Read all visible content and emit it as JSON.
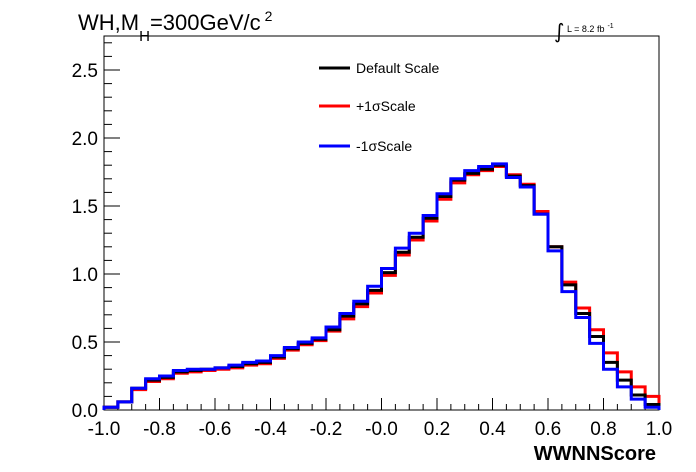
{
  "chart_data": {
    "type": "line",
    "title_main": "WH,M",
    "title_sub": "H",
    "title_rest": "=300GeV/c",
    "title_sup": "2",
    "lumi_symbol": "∫",
    "lumi_text": "L = 8.2 fb",
    "lumi_sup": "-1",
    "xlabel": "WWNNScore",
    "ylabel": "",
    "xlim": [
      -1.0,
      1.0
    ],
    "ylim": [
      0.0,
      2.75
    ],
    "x_ticks": [
      "-1.0",
      "-0.8",
      "-0.6",
      "-0.4",
      "-0.2",
      "-0.0",
      "0.2",
      "0.4",
      "0.6",
      "0.8",
      "1.0"
    ],
    "y_ticks": [
      "0.0",
      "0.5",
      "1.0",
      "1.5",
      "2.0",
      "2.5"
    ],
    "bin_edges": [
      -1.0,
      -0.95,
      -0.9,
      -0.85,
      -0.8,
      -0.75,
      -0.7,
      -0.65,
      -0.6,
      -0.55,
      -0.5,
      -0.45,
      -0.4,
      -0.35,
      -0.3,
      -0.25,
      -0.2,
      -0.15,
      -0.1,
      -0.05,
      0.0,
      0.05,
      0.1,
      0.15,
      0.2,
      0.25,
      0.3,
      0.35,
      0.4,
      0.45,
      0.5,
      0.55,
      0.6,
      0.65,
      0.7,
      0.75,
      0.8,
      0.85,
      0.9,
      0.95,
      1.0
    ],
    "legend_position": "top-center",
    "series": [
      {
        "name": "Default Scale",
        "color": "#000000",
        "values": [
          0.02,
          0.06,
          0.16,
          0.22,
          0.24,
          0.28,
          0.29,
          0.3,
          0.31,
          0.32,
          0.34,
          0.35,
          0.39,
          0.45,
          0.49,
          0.52,
          0.59,
          0.69,
          0.78,
          0.88,
          1.01,
          1.16,
          1.27,
          1.41,
          1.57,
          1.69,
          1.74,
          1.77,
          1.8,
          1.72,
          1.65,
          1.44,
          1.2,
          0.92,
          0.71,
          0.54,
          0.35,
          0.22,
          0.11,
          0.04
        ]
      },
      {
        "name": "+1σScale",
        "color": "#ff0000",
        "values": [
          0.02,
          0.06,
          0.15,
          0.21,
          0.23,
          0.27,
          0.28,
          0.29,
          0.3,
          0.31,
          0.33,
          0.34,
          0.38,
          0.44,
          0.48,
          0.51,
          0.58,
          0.67,
          0.76,
          0.86,
          0.99,
          1.14,
          1.25,
          1.39,
          1.55,
          1.67,
          1.73,
          1.76,
          1.79,
          1.73,
          1.66,
          1.46,
          1.2,
          0.94,
          0.75,
          0.59,
          0.42,
          0.28,
          0.17,
          0.1
        ]
      },
      {
        "name": "-1σScale",
        "color": "#0000ff",
        "values": [
          0.02,
          0.06,
          0.16,
          0.23,
          0.25,
          0.29,
          0.3,
          0.3,
          0.31,
          0.33,
          0.35,
          0.36,
          0.4,
          0.46,
          0.5,
          0.53,
          0.61,
          0.71,
          0.8,
          0.91,
          1.04,
          1.19,
          1.3,
          1.43,
          1.59,
          1.7,
          1.76,
          1.79,
          1.81,
          1.71,
          1.64,
          1.44,
          1.17,
          0.87,
          0.68,
          0.49,
          0.3,
          0.17,
          0.08,
          0.02
        ]
      }
    ]
  }
}
